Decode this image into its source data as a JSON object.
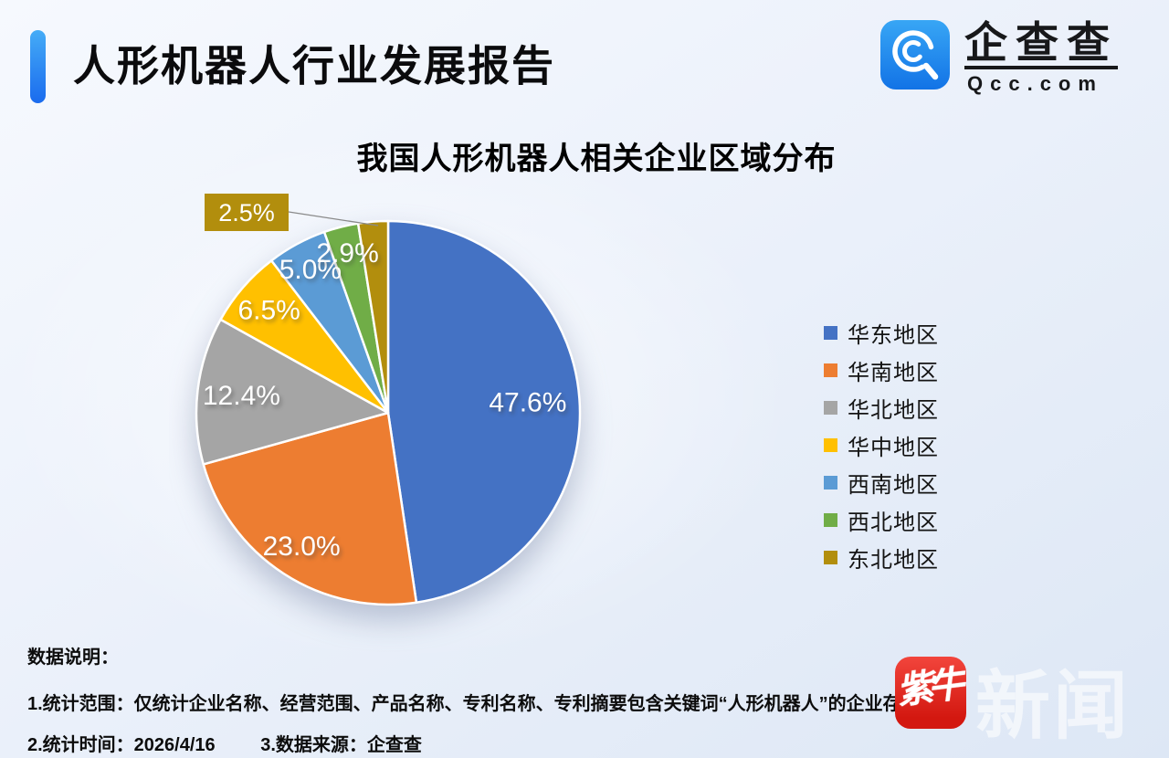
{
  "header": {
    "title": "人形机器人行业发展报告",
    "logo": {
      "icon": "qcc-magnifier-icon",
      "name": "企查查",
      "domain": "Qcc.com"
    }
  },
  "chart_data": {
    "type": "pie",
    "title": "我国人形机器人相关企业区域分布",
    "start_angle_deg": 0,
    "direction": "clockwise",
    "legend_position": "right",
    "label_format": "percent_1dp",
    "series": [
      {
        "label": "华东地区",
        "value": 47.6,
        "display": "47.6%",
        "color": "#4472C4"
      },
      {
        "label": "华南地区",
        "value": 23.0,
        "display": "23.0%",
        "color": "#ED7D31"
      },
      {
        "label": "华北地区",
        "value": 12.4,
        "display": "12.4%",
        "color": "#A5A5A5"
      },
      {
        "label": "华中地区",
        "value": 6.5,
        "display": "6.5%",
        "color": "#FFC000"
      },
      {
        "label": "西南地区",
        "value": 5.0,
        "display": "5.0%",
        "color": "#5B9BD5"
      },
      {
        "label": "西北地区",
        "value": 2.9,
        "display": "2.9%",
        "color": "#70AD47"
      },
      {
        "label": "东北地区",
        "value": 2.5,
        "display": "2.5%",
        "color": "#B28E0D",
        "callout": true
      }
    ]
  },
  "footnotes": {
    "heading": "数据说明：",
    "line1": "1.统计范围：仅统计企业名称、经营范围、产品名称、专利名称、专利摘要包含关键词“人形机器人”的企业存续企业",
    "line2_time": "2.统计时间：2026/4/16",
    "line2_source": "3.数据来源：企查查"
  },
  "watermark": {
    "badge_text": "紫牛",
    "faint_text": "新闻",
    "badge_color": "#D31810"
  }
}
